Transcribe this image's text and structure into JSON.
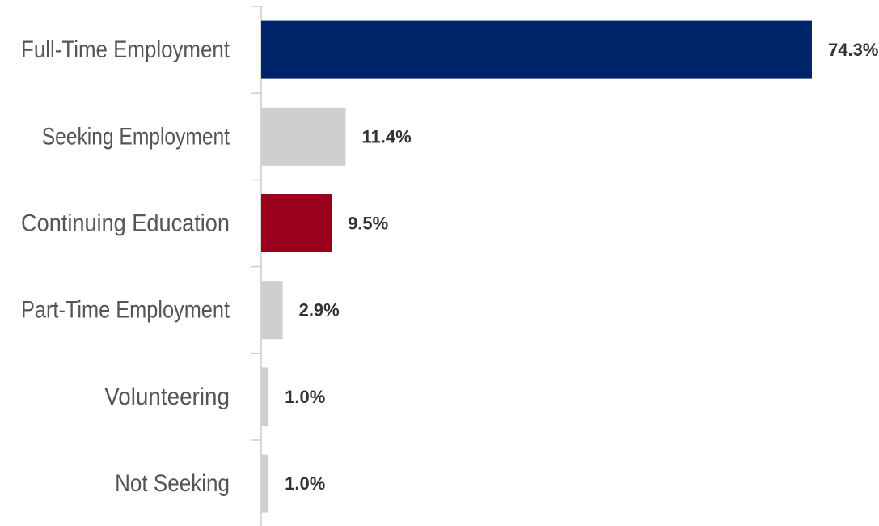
{
  "chart_data": {
    "type": "bar",
    "orientation": "horizontal",
    "title": "",
    "xlabel": "",
    "ylabel": "",
    "grid": false,
    "legend": "none",
    "xlim": [
      0,
      74.3
    ],
    "categories": [
      "Full-Time Employment",
      "Seeking Employment",
      "Continuing Education",
      "Part-Time Employment",
      "Volunteering",
      "Not Seeking"
    ],
    "values": [
      74.3,
      11.4,
      9.5,
      2.9,
      1.0,
      1.0
    ],
    "value_labels": [
      "74.3%",
      "11.4%",
      "9.5%",
      "2.9%",
      "1.0%",
      "1.0%"
    ],
    "bar_colors": [
      "#002469",
      "#d0cece",
      "#98001c",
      "#d0cece",
      "#d0cece",
      "#d0cece"
    ]
  }
}
